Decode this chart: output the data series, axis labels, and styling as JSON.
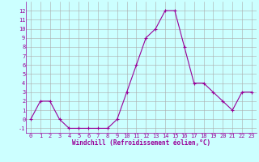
{
  "x": [
    0,
    1,
    2,
    3,
    4,
    5,
    6,
    7,
    8,
    9,
    10,
    11,
    12,
    13,
    14,
    15,
    16,
    17,
    18,
    19,
    20,
    21,
    22,
    23
  ],
  "y": [
    0,
    2,
    2,
    0,
    -1,
    -1,
    -1,
    -1,
    -1,
    0,
    3,
    6,
    9,
    10,
    12,
    12,
    8,
    4,
    4,
    3,
    2,
    1,
    3,
    3
  ],
  "line_color": "#990099",
  "marker": "+",
  "marker_size": 3,
  "marker_lw": 0.8,
  "line_width": 0.8,
  "bg_color": "#ccffff",
  "grid_color": "#aaaaaa",
  "xlabel": "Windchill (Refroidissement éolien,°C)",
  "xlabel_color": "#990099",
  "tick_color": "#990099",
  "ylim": [
    -1.5,
    13
  ],
  "xlim": [
    -0.5,
    23.5
  ],
  "yticks": [
    -1,
    0,
    1,
    2,
    3,
    4,
    5,
    6,
    7,
    8,
    9,
    10,
    11,
    12
  ],
  "xticks": [
    0,
    1,
    2,
    3,
    4,
    5,
    6,
    7,
    8,
    9,
    10,
    11,
    12,
    13,
    14,
    15,
    16,
    17,
    18,
    19,
    20,
    21,
    22,
    23
  ],
  "tick_fontsize": 5,
  "xlabel_fontsize": 5.5
}
